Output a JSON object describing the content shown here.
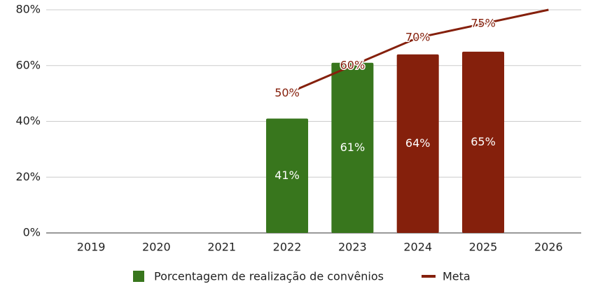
{
  "chart_data": {
    "type": "bar_line",
    "categories": [
      "2019",
      "2020",
      "2021",
      "2022",
      "2023",
      "2024",
      "2025",
      "2026"
    ],
    "series": [
      {
        "name": "Porcentagem de realização de convênios",
        "type": "bar",
        "color": "#38761d",
        "colors": [
          null,
          null,
          null,
          "#38761d",
          "#38761d",
          "#85200c",
          "#85200c",
          null
        ],
        "values": [
          null,
          null,
          null,
          41,
          61,
          64,
          65,
          null
        ],
        "value_labels": [
          null,
          null,
          null,
          "41%",
          "61%",
          "64%",
          "65%",
          null
        ]
      },
      {
        "name": "Meta",
        "type": "line",
        "color": "#85200c",
        "values": [
          null,
          null,
          null,
          50,
          60,
          70,
          75,
          80
        ],
        "value_labels": [
          null,
          null,
          null,
          "50%",
          "60%",
          "70%",
          "75%",
          null
        ]
      }
    ],
    "ylim": [
      0,
      80
    ],
    "yticks": [
      {
        "value": 0,
        "label": "0%"
      },
      {
        "value": 20,
        "label": "20%"
      },
      {
        "value": 40,
        "label": "40%"
      },
      {
        "value": 60,
        "label": "60%"
      },
      {
        "value": 80,
        "label": "80%"
      }
    ],
    "grid": true,
    "legend": "bottom"
  }
}
